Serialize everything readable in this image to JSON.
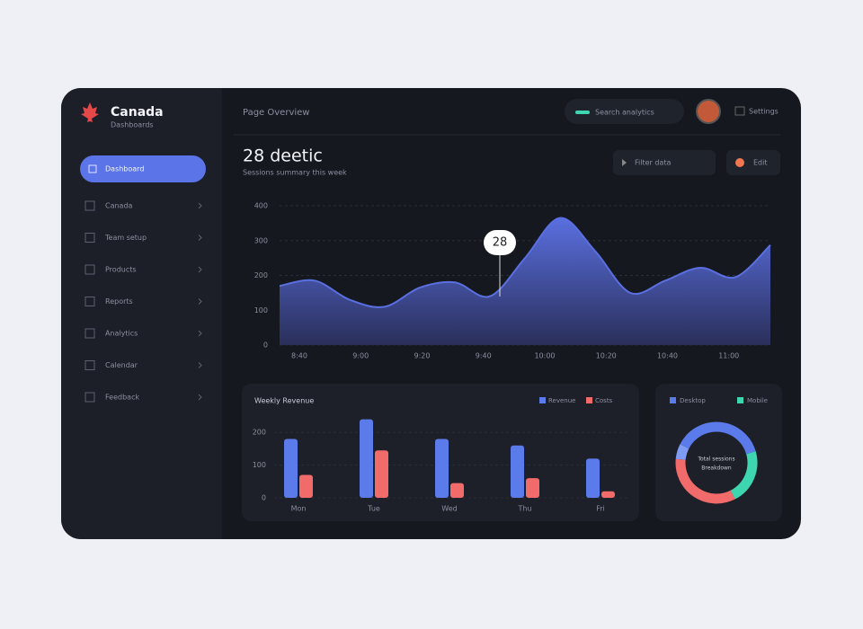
{
  "sidebar": {
    "brand": "Canada",
    "tagline": "Dashboards",
    "nav": [
      "Dashboard",
      "Canada",
      "Team setup",
      "Products",
      "Reports",
      "Analytics",
      "Calendar",
      "Feedback"
    ]
  },
  "header": {
    "breadcrumb": "Page Overview",
    "search": "Search analytics",
    "account": "Settings"
  },
  "summary": {
    "title": "28 deetic",
    "subtitle": "Sessions summary this week",
    "buttons": [
      "Filter data",
      "Edit"
    ]
  },
  "chart_data": [
    {
      "type": "area",
      "color": "#5a6fe0",
      "values": [
        170,
        185,
        130,
        110,
        165,
        180,
        140,
        250,
        365,
        270,
        150,
        185,
        222,
        195,
        287
      ],
      "x_labels": [
        "8:40",
        "9:00",
        "9:20",
        "9:40",
        "10:00",
        "10:20",
        "10:40",
        "11:00"
      ],
      "ylim": [
        0,
        400
      ],
      "yticks": [
        0,
        100,
        200,
        300,
        400
      ],
      "grid": true,
      "tooltip": "28"
    },
    {
      "type": "bar",
      "title": "Weekly Revenue",
      "categories": [
        "Mon",
        "Tue",
        "Wed",
        "Thu",
        "Fri"
      ],
      "series": [
        {
          "name": "Revenue",
          "color": "#5b7bea",
          "values": [
            180,
            240,
            180,
            160,
            120
          ]
        },
        {
          "name": "Costs",
          "color": "#f26b6b",
          "values": [
            70,
            145,
            45,
            60,
            20
          ]
        }
      ],
      "ylim": [
        0,
        250
      ],
      "yticks": [
        0,
        100,
        200
      ],
      "grid": true
    },
    {
      "type": "pie",
      "categories": [
        "Desktop",
        "Mobile",
        null,
        null
      ],
      "values": [
        38,
        22,
        34,
        6
      ],
      "colors": [
        "#5b7bea",
        "#3ed6b0",
        "#f26b6b",
        "#7f9cf5"
      ],
      "center_text": [
        "Total sessions",
        "Breakdown"
      ]
    }
  ]
}
